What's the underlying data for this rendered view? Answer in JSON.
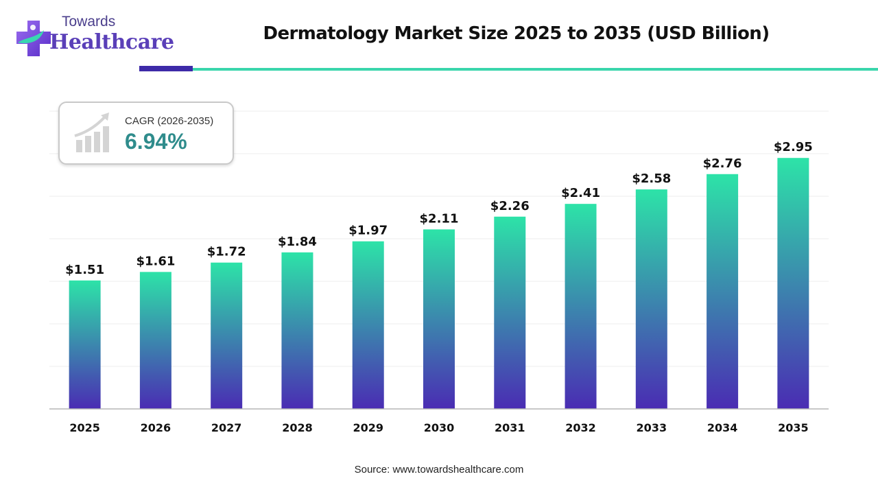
{
  "brand": {
    "top": "Towards",
    "bottom": "Healthcare"
  },
  "cagr": {
    "label": "CAGR (2026-2035)",
    "value": "6.94%"
  },
  "source": "Source: www.towardshealthcare.com",
  "colors": {
    "bar_top": "#2de3a8",
    "bar_bottom": "#4a2cb3",
    "accent_dark": "#3d2aa8",
    "accent_teal": "#3ad6ac"
  },
  "chart_data": {
    "type": "bar",
    "title": "Dermatology Market Size 2025 to 2035 (USD Billion)",
    "categories": [
      "2025",
      "2026",
      "2027",
      "2028",
      "2029",
      "2030",
      "2031",
      "2032",
      "2033",
      "2034",
      "2035"
    ],
    "values": [
      1.51,
      1.61,
      1.72,
      1.84,
      1.97,
      2.11,
      2.26,
      2.41,
      2.58,
      2.76,
      2.95
    ],
    "value_labels": [
      "$1.51",
      "$1.61",
      "$1.72",
      "$1.84",
      "$1.97",
      "$2.11",
      "$2.26",
      "$2.41",
      "$2.58",
      "$2.76",
      "$2.95"
    ],
    "ylim": [
      0,
      3.5
    ],
    "grid": true,
    "legend": "none"
  }
}
